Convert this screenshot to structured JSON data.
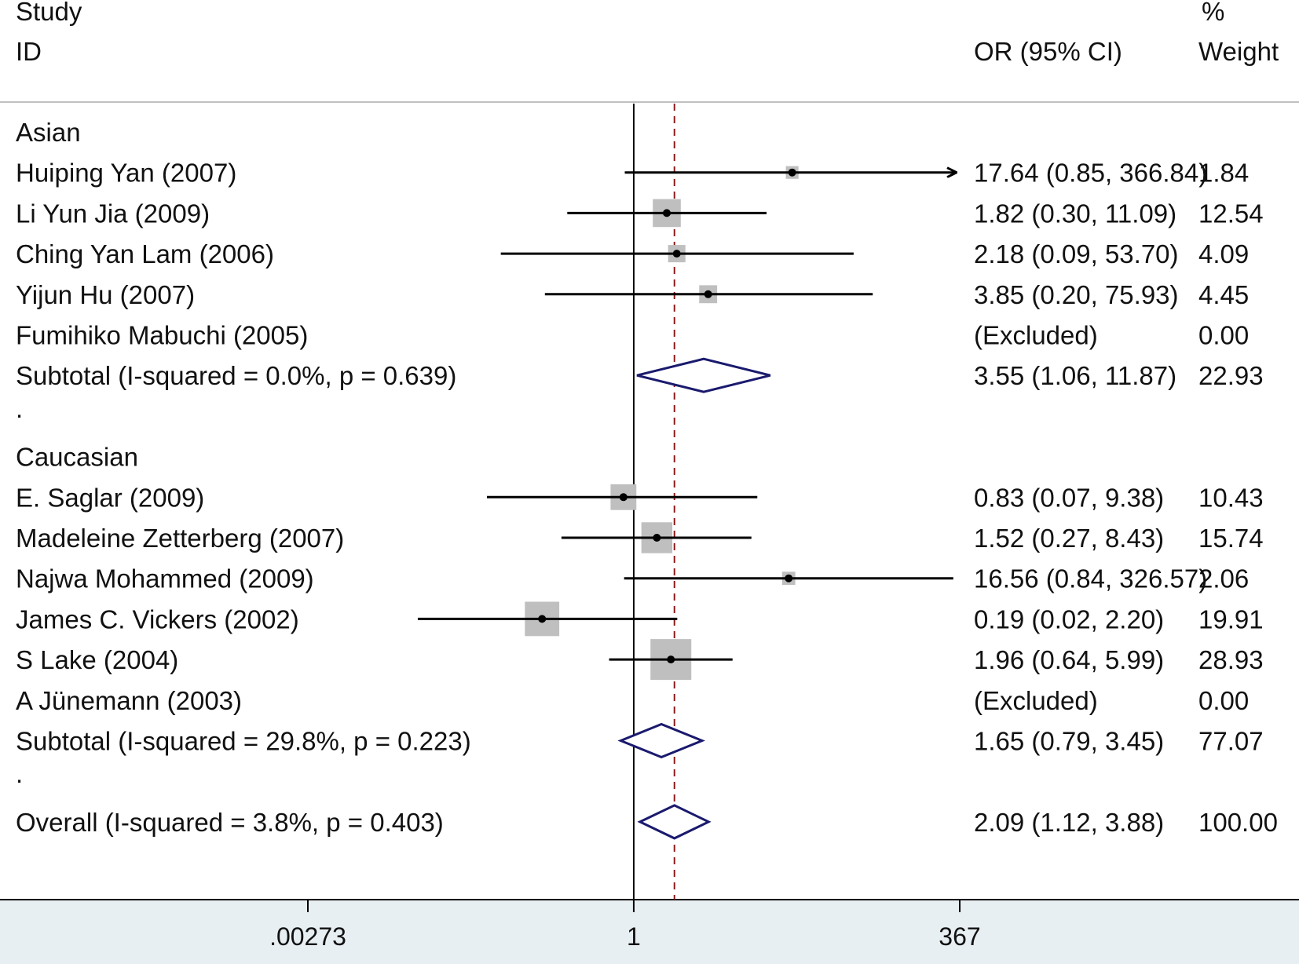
{
  "header": {
    "study": "Study",
    "id": "ID",
    "percent": "%",
    "or_ci": "OR (95% CI)",
    "weight": "Weight"
  },
  "chart_data": {
    "type": "forest",
    "xscale": "log",
    "xlim": [
      0.00273,
      367
    ],
    "reference_value": 1,
    "overall_estimate": 2.09,
    "x_ticks": [
      {
        "value": 0.00273,
        "label": ".00273"
      },
      {
        "value": 1,
        "label": "1"
      },
      {
        "value": 367,
        "label": "367"
      }
    ],
    "rows": [
      {
        "kind": "group",
        "label": "Asian"
      },
      {
        "kind": "study",
        "label": "Huiping Yan (2007)",
        "or": 17.64,
        "lo": 0.85,
        "hi": 366.84,
        "arrow": true,
        "ci_text": "17.64 (0.85, 366.84)",
        "weight": 1.84,
        "weight_text": "1.84"
      },
      {
        "kind": "study",
        "label": "Li Yun Jia (2009)",
        "or": 1.82,
        "lo": 0.3,
        "hi": 11.09,
        "ci_text": "1.82 (0.30, 11.09)",
        "weight": 12.54,
        "weight_text": "12.54"
      },
      {
        "kind": "study",
        "label": "Ching Yan Lam (2006)",
        "or": 2.18,
        "lo": 0.09,
        "hi": 53.7,
        "ci_text": "2.18 (0.09, 53.70)",
        "weight": 4.09,
        "weight_text": "4.09"
      },
      {
        "kind": "study",
        "label": "Yijun Hu (2007)",
        "or": 3.85,
        "lo": 0.2,
        "hi": 75.93,
        "ci_text": "3.85 (0.20, 75.93)",
        "weight": 4.45,
        "weight_text": "4.45"
      },
      {
        "kind": "excluded",
        "label": "Fumihiko Mabuchi (2005)",
        "ci_text": "(Excluded)",
        "weight_text": "0.00"
      },
      {
        "kind": "subtotal",
        "label": "Subtotal  (I-squared = 0.0%, p = 0.639)",
        "or": 3.55,
        "lo": 1.06,
        "hi": 11.87,
        "ci_text": "3.55 (1.06, 11.87)",
        "weight_text": "22.93"
      },
      {
        "kind": "spacer",
        "label": "."
      },
      {
        "kind": "group",
        "label": "Caucasian"
      },
      {
        "kind": "study",
        "label": "E. Saglar (2009)",
        "or": 0.83,
        "lo": 0.07,
        "hi": 9.38,
        "ci_text": "0.83 (0.07, 9.38)",
        "weight": 10.43,
        "weight_text": "10.43"
      },
      {
        "kind": "study",
        "label": "Madeleine Zetterberg (2007)",
        "or": 1.52,
        "lo": 0.27,
        "hi": 8.43,
        "ci_text": "1.52 (0.27, 8.43)",
        "weight": 15.74,
        "weight_text": "15.74"
      },
      {
        "kind": "study",
        "label": "Najwa Mohammed (2009)",
        "or": 16.56,
        "lo": 0.84,
        "hi": 326.57,
        "ci_text": "16.56 (0.84, 326.57)",
        "weight": 2.06,
        "weight_text": "2.06"
      },
      {
        "kind": "study",
        "label": "James C. Vickers (2002)",
        "or": 0.19,
        "lo": 0.02,
        "hi": 2.2,
        "ci_text": "0.19 (0.02, 2.20)",
        "weight": 19.91,
        "weight_text": "19.91"
      },
      {
        "kind": "study",
        "label": "S Lake (2004)",
        "or": 1.96,
        "lo": 0.64,
        "hi": 5.99,
        "ci_text": "1.96 (0.64, 5.99)",
        "weight": 28.93,
        "weight_text": "28.93"
      },
      {
        "kind": "excluded",
        "label": "A Jünemann (2003)",
        "ci_text": "(Excluded)",
        "weight_text": "0.00"
      },
      {
        "kind": "subtotal",
        "label": "Subtotal  (I-squared = 29.8%, p = 0.223)",
        "or": 1.65,
        "lo": 0.79,
        "hi": 3.45,
        "ci_text": "1.65 (0.79, 3.45)",
        "weight_text": "77.07"
      },
      {
        "kind": "spacer",
        "label": "."
      },
      {
        "kind": "overall",
        "label": "Overall  (I-squared = 3.8%, p = 0.403)",
        "or": 2.09,
        "lo": 1.12,
        "hi": 3.88,
        "ci_text": "2.09 (1.12, 3.88)",
        "weight_text": "100.00"
      }
    ]
  },
  "colors": {
    "box": "#bfbfbf",
    "diamond": "#1a1a6e",
    "ref_line": "#8b1a1a",
    "axis_band": "#e8eff3"
  }
}
